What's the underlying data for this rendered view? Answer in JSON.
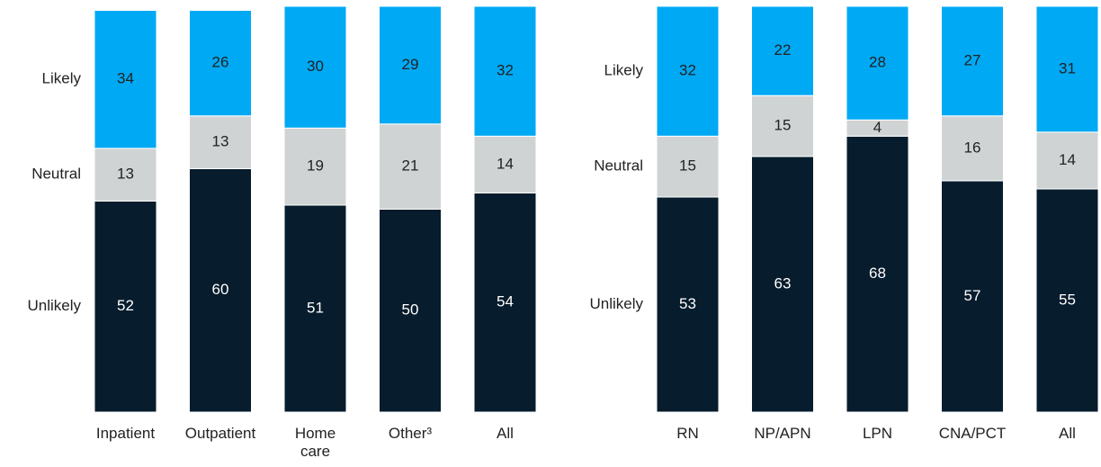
{
  "chart_data": [
    {
      "type": "bar",
      "stacked": true,
      "legend": "left",
      "categories": [
        "Inpatient",
        "Outpatient",
        "Home\ncare",
        "Other³",
        "All"
      ],
      "ylim": [
        0,
        100
      ],
      "series": [
        {
          "name": "Unlikely",
          "color": "#071c2c",
          "values": [
            52,
            60,
            51,
            50,
            54
          ]
        },
        {
          "name": "Neutral",
          "color": "#d0d3d4",
          "values": [
            13,
            13,
            19,
            21,
            14
          ]
        },
        {
          "name": "Likely",
          "color": "#00a9f4",
          "values": [
            34,
            26,
            30,
            29,
            32
          ]
        }
      ]
    },
    {
      "type": "bar",
      "stacked": true,
      "legend": "left",
      "categories": [
        "RN",
        "NP/APN",
        "LPN",
        "CNA/PCT",
        "All"
      ],
      "ylim": [
        0,
        100
      ],
      "series": [
        {
          "name": "Unlikely",
          "color": "#071c2c",
          "values": [
            53,
            63,
            68,
            57,
            55
          ]
        },
        {
          "name": "Neutral",
          "color": "#d0d3d4",
          "values": [
            15,
            15,
            4,
            16,
            14
          ]
        },
        {
          "name": "Likely",
          "color": "#00a9f4",
          "values": [
            32,
            22,
            28,
            27,
            31
          ]
        }
      ]
    }
  ]
}
